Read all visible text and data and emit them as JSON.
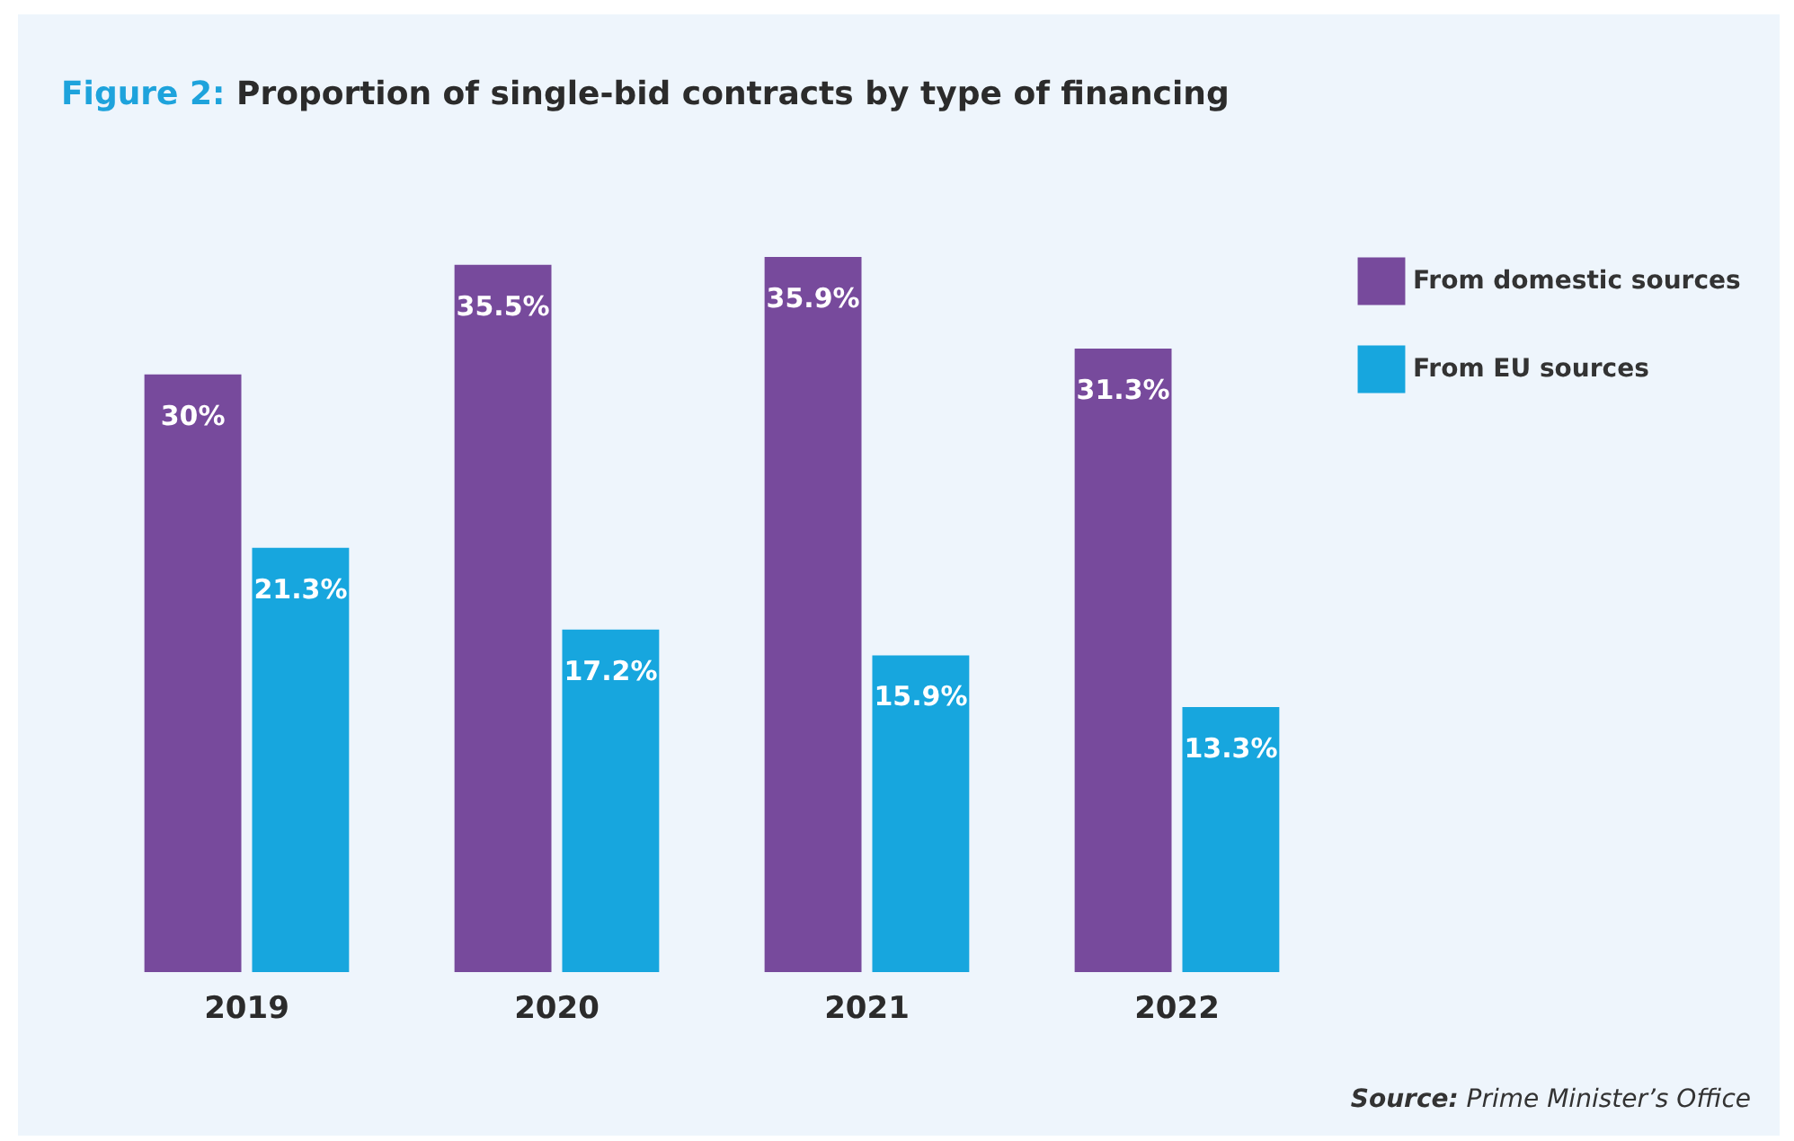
{
  "chart_data": {
    "type": "bar",
    "title": "Figure 2: Proportion of single-bid contracts by type of financing",
    "categories": [
      "2019",
      "2020",
      "2021",
      "2022"
    ],
    "series": [
      {
        "name": "From domestic sources",
        "color": "#774a9c",
        "values": [
          30,
          35.5,
          35.9,
          31.3
        ],
        "value_labels": [
          "30%",
          "35.5%",
          "35.9%",
          "31.3%"
        ]
      },
      {
        "name": "From EU sources",
        "color": "#17a6de",
        "values": [
          21.3,
          17.2,
          15.9,
          13.3
        ],
        "value_labels": [
          "21.3%",
          "17.2%",
          "15.9%",
          "13.3%"
        ]
      }
    ],
    "legend": "top right",
    "annotations": [
      "Source: Prime Minister’s Office"
    ]
  }
}
